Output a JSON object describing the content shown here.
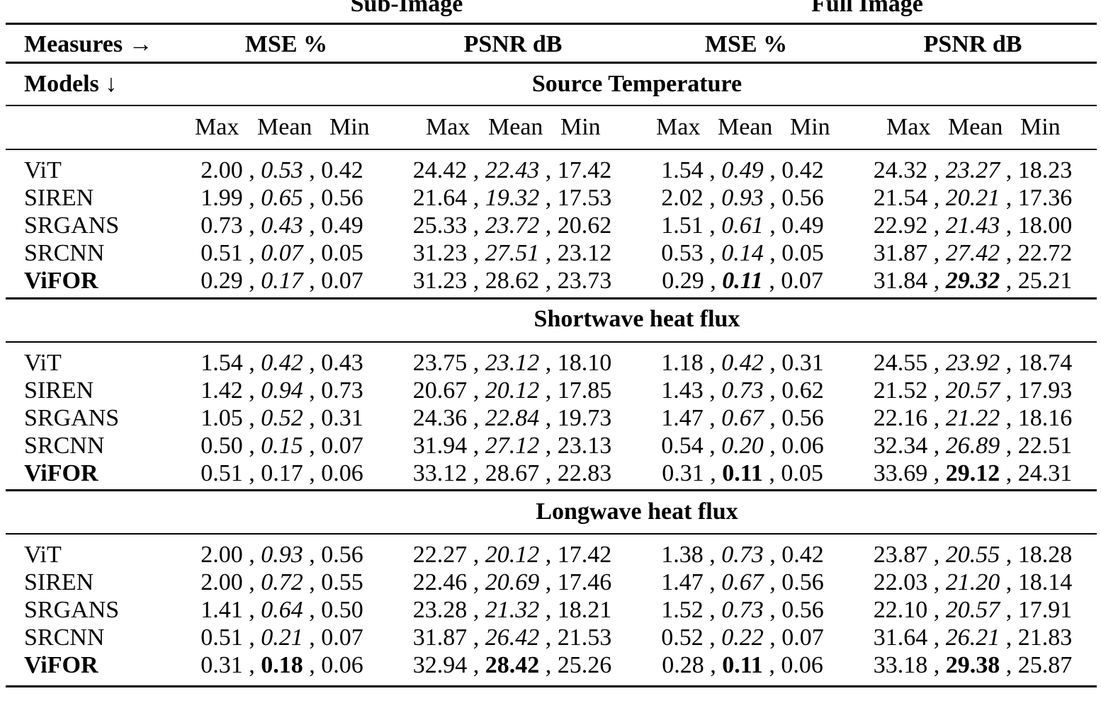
{
  "groups": [
    "Sub-Image",
    "Full Image"
  ],
  "header": {
    "measures": "Measures →",
    "models": "Models ↓",
    "measure_cols": [
      "MSE %",
      "PSNR dB",
      "MSE %",
      "PSNR dB"
    ],
    "sub_cols": [
      "Max",
      "Mean",
      "Min"
    ]
  },
  "sections": [
    {
      "title": "Source Temperature",
      "rows": [
        {
          "model": "ViT",
          "bold": false,
          "cells": [
            {
              "max": "2.00",
              "mean": "0.53",
              "min": "0.42",
              "style": "it"
            },
            {
              "max": "24.42",
              "mean": "22.43",
              "min": "17.42",
              "style": "it"
            },
            {
              "max": "1.54",
              "mean": "0.49",
              "min": "0.42",
              "style": "it"
            },
            {
              "max": "24.32",
              "mean": "23.27",
              "min": "18.23",
              "style": "it"
            }
          ]
        },
        {
          "model": "SIREN",
          "bold": false,
          "cells": [
            {
              "max": "1.99",
              "mean": "0.65",
              "min": "0.56",
              "style": "it"
            },
            {
              "max": "21.64",
              "mean": "19.32",
              "min": "17.53",
              "style": "it"
            },
            {
              "max": "2.02",
              "mean": "0.93",
              "min": "0.56",
              "style": "it"
            },
            {
              "max": "21.54",
              "mean": "20.21",
              "min": "17.36",
              "style": "it"
            }
          ]
        },
        {
          "model": "SRGANS",
          "bold": false,
          "cells": [
            {
              "max": "0.73",
              "mean": "0.43",
              "min": "0.49",
              "style": "it"
            },
            {
              "max": "25.33",
              "mean": "23.72",
              "min": "20.62",
              "style": "it"
            },
            {
              "max": "1.51",
              "mean": "0.61",
              "min": "0.49",
              "style": "it"
            },
            {
              "max": "22.92",
              "mean": "21.43",
              "min": "18.00",
              "style": "it"
            }
          ]
        },
        {
          "model": "SRCNN",
          "bold": false,
          "cells": [
            {
              "max": "0.51",
              "mean": "0.07",
              "min": "0.05",
              "style": "it"
            },
            {
              "max": "31.23",
              "mean": "27.51",
              "min": "23.12",
              "style": "it"
            },
            {
              "max": "0.53",
              "mean": "0.14",
              "min": "0.05",
              "style": "it"
            },
            {
              "max": "31.87",
              "mean": "27.42",
              "min": "22.72",
              "style": "it"
            }
          ]
        },
        {
          "model": "ViFOR",
          "bold": true,
          "cells": [
            {
              "max": "0.29",
              "mean": "0.17",
              "min": "0.07",
              "style": "it"
            },
            {
              "max": "31.23",
              "mean": "28.62",
              "min": "23.73",
              "style": ""
            },
            {
              "max": "0.29",
              "mean": "0.11",
              "min": "0.07",
              "style": "it bd"
            },
            {
              "max": "31.84",
              "mean": "29.32",
              "min": "25.21",
              "style": "it bd"
            }
          ]
        }
      ]
    },
    {
      "title": "Shortwave heat flux",
      "rows": [
        {
          "model": "ViT",
          "bold": false,
          "cells": [
            {
              "max": "1.54",
              "mean": "0.42",
              "min": "0.43",
              "style": "it"
            },
            {
              "max": "23.75",
              "mean": "23.12",
              "min": "18.10",
              "style": "it"
            },
            {
              "max": "1.18",
              "mean": "0.42",
              "min": "0.31",
              "style": "it"
            },
            {
              "max": "24.55",
              "mean": "23.92",
              "min": "18.74",
              "style": "it"
            }
          ]
        },
        {
          "model": "SIREN",
          "bold": false,
          "cells": [
            {
              "max": "1.42",
              "mean": "0.94",
              "min": "0.73",
              "style": "it"
            },
            {
              "max": "20.67",
              "mean": "20.12",
              "min": "17.85",
              "style": "it"
            },
            {
              "max": "1.43",
              "mean": "0.73",
              "min": "0.62",
              "style": "it"
            },
            {
              "max": "21.52",
              "mean": "20.57",
              "min": "17.93",
              "style": "it"
            }
          ]
        },
        {
          "model": "SRGANS",
          "bold": false,
          "cells": [
            {
              "max": "1.05",
              "mean": "0.52",
              "min": "0.31",
              "style": "it"
            },
            {
              "max": "24.36",
              "mean": "22.84",
              "min": "19.73",
              "style": "it"
            },
            {
              "max": "1.47",
              "mean": "0.67",
              "min": "0.56",
              "style": "it"
            },
            {
              "max": "22.16",
              "mean": "21.22",
              "min": "18.16",
              "style": "it"
            }
          ]
        },
        {
          "model": "SRCNN",
          "bold": false,
          "cells": [
            {
              "max": "0.50",
              "mean": "0.15",
              "min": "0.07",
              "style": "it"
            },
            {
              "max": "31.94",
              "mean": "27.12",
              "min": "23.13",
              "style": "it"
            },
            {
              "max": "0.54",
              "mean": "0.20",
              "min": "0.06",
              "style": "it"
            },
            {
              "max": "32.34",
              "mean": "26.89",
              "min": "22.51",
              "style": "it"
            }
          ]
        },
        {
          "model": "ViFOR",
          "bold": true,
          "cells": [
            {
              "max": "0.51",
              "mean": "0.17",
              "min": "0.06",
              "style": ""
            },
            {
              "max": "33.12",
              "mean": "28.67",
              "min": "22.83",
              "style": ""
            },
            {
              "max": "0.31",
              "mean": "0.11",
              "min": "0.05",
              "style": "bd"
            },
            {
              "max": "33.69",
              "mean": "29.12",
              "min": "24.31",
              "style": "bd"
            }
          ]
        }
      ]
    },
    {
      "title": "Longwave heat flux",
      "rows": [
        {
          "model": "ViT",
          "bold": false,
          "cells": [
            {
              "max": "2.00",
              "mean": "0.93",
              "min": "0.56",
              "style": "it"
            },
            {
              "max": "22.27",
              "mean": "20.12",
              "min": "17.42",
              "style": "it"
            },
            {
              "max": "1.38",
              "mean": "0.73",
              "min": "0.42",
              "style": "it"
            },
            {
              "max": "23.87",
              "mean": "20.55",
              "min": "18.28",
              "style": "it"
            }
          ]
        },
        {
          "model": "SIREN",
          "bold": false,
          "cells": [
            {
              "max": "2.00",
              "mean": "0.72",
              "min": "0.55",
              "style": "it"
            },
            {
              "max": "22.46",
              "mean": "20.69",
              "min": "17.46",
              "style": "it"
            },
            {
              "max": "1.47",
              "mean": "0.67",
              "min": "0.56",
              "style": "it"
            },
            {
              "max": "22.03",
              "mean": "21.20",
              "min": "18.14",
              "style": "it"
            }
          ]
        },
        {
          "model": "SRGANS",
          "bold": false,
          "cells": [
            {
              "max": "1.41",
              "mean": "0.64",
              "min": "0.50",
              "style": "it"
            },
            {
              "max": "23.28",
              "mean": "21.32",
              "min": "18.21",
              "style": "it"
            },
            {
              "max": "1.52",
              "mean": "0.73",
              "min": "0.56",
              "style": "it"
            },
            {
              "max": "22.10",
              "mean": "20.57",
              "min": "17.91",
              "style": "it"
            }
          ]
        },
        {
          "model": "SRCNN",
          "bold": false,
          "cells": [
            {
              "max": "0.51",
              "mean": "0.21",
              "min": "0.07",
              "style": "it"
            },
            {
              "max": "31.87",
              "mean": "26.42",
              "min": "21.53",
              "style": "it"
            },
            {
              "max": "0.52",
              "mean": "0.22",
              "min": "0.07",
              "style": "it"
            },
            {
              "max": "31.64",
              "mean": "26.21",
              "min": "21.83",
              "style": "it"
            }
          ]
        },
        {
          "model": "ViFOR",
          "bold": true,
          "cells": [
            {
              "max": "0.31",
              "mean": "0.18",
              "min": "0.06",
              "style": "bd"
            },
            {
              "max": "32.94",
              "mean": "28.42",
              "min": "25.26",
              "style": "bd"
            },
            {
              "max": "0.28",
              "mean": "0.11",
              "min": "0.06",
              "style": "bd"
            },
            {
              "max": "33.18",
              "mean": "29.38",
              "min": "25.87",
              "style": "bd"
            }
          ]
        }
      ]
    }
  ]
}
